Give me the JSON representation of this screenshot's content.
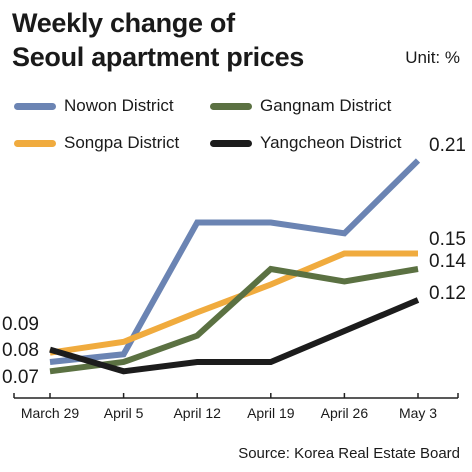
{
  "chart_data": {
    "type": "line",
    "title_lines": [
      "Weekly change of",
      "Seoul apartment prices"
    ],
    "unit": "Unit: %",
    "source": "Source: Korea Real Estate Board",
    "categories": [
      "March 29",
      "April 5",
      "April 12",
      "April 19",
      "April 26",
      "May 3"
    ],
    "ylim": [
      0.06,
      0.22
    ],
    "grid": false,
    "legend_placement": "top",
    "series": [
      {
        "name": "Nowon District",
        "color": "#6b84b3",
        "values": [
          0.08,
          0.085,
          0.17,
          0.17,
          0.163,
          0.21
        ]
      },
      {
        "name": "Gangnam District",
        "color": "#5b7142",
        "values": [
          0.074,
          0.08,
          0.097,
          0.14,
          0.132,
          0.14
        ]
      },
      {
        "name": "Songpa District",
        "color": "#f0ab3e",
        "values": [
          0.086,
          0.093,
          0.112,
          0.13,
          0.15,
          0.15
        ]
      },
      {
        "name": "Yangcheon District",
        "color": "#1c1c1c",
        "values": [
          0.088,
          0.074,
          0.08,
          0.08,
          0.1,
          0.12
        ]
      }
    ],
    "start_labels": [
      "0.09",
      "0.08",
      "0.07"
    ],
    "end_labels": [
      "0.21",
      "0.15",
      "0.14",
      "0.12"
    ]
  }
}
